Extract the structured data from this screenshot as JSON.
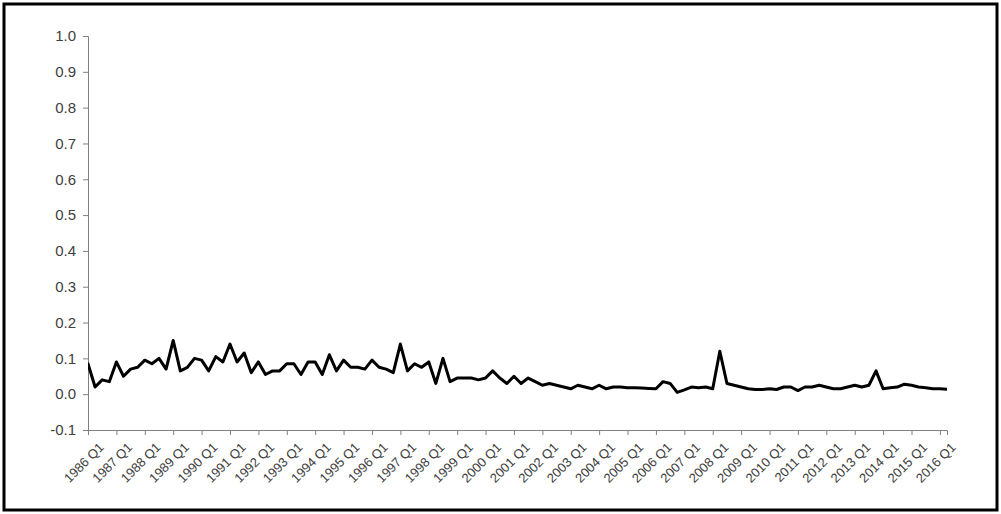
{
  "chart_data": {
    "type": "line",
    "categories": [
      "1986 Q1",
      null,
      null,
      null,
      "1987 Q1",
      null,
      null,
      null,
      "1988 Q1",
      null,
      null,
      null,
      "1989 Q1",
      null,
      null,
      null,
      "1990 Q1",
      null,
      null,
      null,
      "1991 Q1",
      null,
      null,
      null,
      "1992 Q1",
      null,
      null,
      null,
      "1993 Q1",
      null,
      null,
      null,
      "1994 Q1",
      null,
      null,
      null,
      "1995 Q1",
      null,
      null,
      null,
      "1996 Q1",
      null,
      null,
      null,
      "1997 Q1",
      null,
      null,
      null,
      "1998 Q1",
      null,
      null,
      null,
      "1999 Q1",
      null,
      null,
      null,
      "2000 Q1",
      null,
      null,
      null,
      "2001 Q1",
      null,
      null,
      null,
      "2002 Q1",
      null,
      null,
      null,
      "2003 Q1",
      null,
      null,
      null,
      "2004 Q1",
      null,
      null,
      null,
      "2005 Q1",
      null,
      null,
      null,
      "2006 Q1",
      null,
      null,
      null,
      "2007 Q1",
      null,
      null,
      null,
      "2008 Q1",
      null,
      null,
      null,
      "2009 Q1",
      null,
      null,
      null,
      "2010 Q1",
      null,
      null,
      null,
      "2011 Q1",
      null,
      null,
      null,
      "2012 Q1",
      null,
      null,
      null,
      "2013 Q1",
      null,
      null,
      null,
      "2014 Q1",
      null,
      null,
      null,
      "2015 Q1",
      null,
      null,
      null,
      "2016 Q1",
      null
    ],
    "values": [
      0.085,
      0.02,
      0.04,
      0.035,
      0.09,
      0.05,
      0.07,
      0.075,
      0.095,
      0.085,
      0.1,
      0.07,
      0.15,
      0.065,
      0.075,
      0.1,
      0.095,
      0.065,
      0.105,
      0.09,
      0.14,
      0.09,
      0.115,
      0.06,
      0.09,
      0.055,
      0.065,
      0.065,
      0.085,
      0.085,
      0.055,
      0.09,
      0.09,
      0.055,
      0.11,
      0.065,
      0.095,
      0.075,
      0.075,
      0.07,
      0.095,
      0.075,
      0.07,
      0.06,
      0.14,
      0.065,
      0.085,
      0.075,
      0.09,
      0.03,
      0.1,
      0.035,
      0.045,
      0.045,
      0.045,
      0.04,
      0.045,
      0.065,
      0.045,
      0.03,
      0.05,
      0.03,
      0.045,
      0.035,
      0.025,
      0.03,
      0.025,
      0.02,
      0.015,
      0.025,
      0.02,
      0.015,
      0.025,
      0.015,
      0.02,
      0.02,
      0.018,
      0.018,
      0.017,
      0.016,
      0.015,
      0.035,
      0.03,
      0.005,
      0.012,
      0.02,
      0.018,
      0.02,
      0.015,
      0.12,
      0.03,
      0.025,
      0.02,
      0.015,
      0.013,
      0.013,
      0.015,
      0.013,
      0.02,
      0.02,
      0.01,
      0.02,
      0.02,
      0.025,
      0.02,
      0.015,
      0.015,
      0.02,
      0.025,
      0.02,
      0.025,
      0.065,
      0.015,
      0.018,
      0.02,
      0.028,
      0.025,
      0.02,
      0.018,
      0.015,
      0.015,
      0.014
    ],
    "color": "#000000",
    "ylim": [
      -0.1,
      1
    ],
    "yticks": [
      -0.1,
      {
        "value": 0,
        "label": "0.0"
      },
      0.1,
      0.2,
      0.3,
      0.4,
      0.5,
      0.6,
      0.7,
      0.8,
      0.9,
      {
        "value": 1,
        "label": "1.0"
      }
    ],
    "grid": false
  }
}
